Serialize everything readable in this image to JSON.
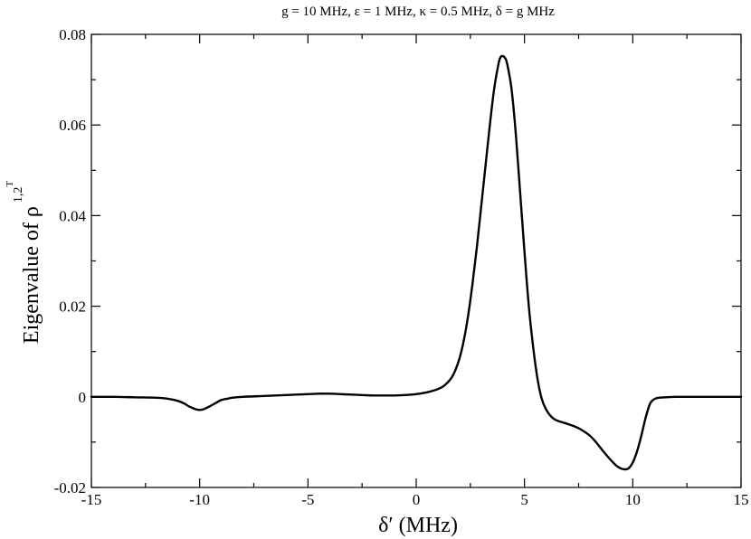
{
  "chart_data": {
    "type": "line",
    "title": "g = 10 MHz,  ε = 1 MHz, κ = 0.5 MHz, δ = g MHz",
    "xlabel": "δ′ (MHz)",
    "ylabel_main": "Eigenvalue of ρ",
    "ylabel_superscript": "1,2",
    "ylabel_superscript_t": "T",
    "xlim": [
      -15,
      15
    ],
    "ylim": [
      -0.02,
      0.08
    ],
    "grid": false,
    "x_ticks": [
      -15,
      -10,
      -5,
      0,
      5,
      10,
      15
    ],
    "x_tick_labels": [
      "-15",
      "-10",
      "-5",
      "0",
      "5",
      "10",
      "15"
    ],
    "y_ticks": [
      -0.02,
      0,
      0.02,
      0.04,
      0.06,
      0.08
    ],
    "y_tick_labels": [
      "-0.02",
      "0",
      "0.02",
      "0.04",
      "0.06",
      "0.08"
    ],
    "line_color": "#000000",
    "series": [
      {
        "x": [
          -15,
          -14,
          -13,
          -12,
          -11.5,
          -11,
          -10.7,
          -10.5,
          -10.2,
          -10,
          -9.8,
          -9.5,
          -9.2,
          -9,
          -8.7,
          -8.5,
          -8,
          -7,
          -6,
          -5,
          -4.5,
          -4.2,
          -4,
          -3.5,
          -3,
          -2.5,
          -2,
          -1.5,
          -1,
          -0.5,
          0,
          0.5,
          1,
          1.3,
          1.6,
          1.8,
          2,
          2.2,
          2.4,
          2.6,
          2.8,
          3,
          3.2,
          3.4,
          3.6,
          3.8,
          3.9,
          4,
          4.1,
          4.2,
          4.4,
          4.6,
          4.8,
          5,
          5.2,
          5.4,
          5.6,
          5.8,
          6,
          6.2,
          6.4,
          6.6,
          6.8,
          7,
          7.3,
          7.6,
          8,
          8.3,
          8.6,
          8.9,
          9.2,
          9.4,
          9.6,
          9.8,
          10,
          10.2,
          10.4,
          10.6,
          10.8,
          11,
          11.2,
          11.5,
          12,
          13,
          14,
          15
        ],
        "y": [
          0,
          0,
          -0.0001,
          -0.0002,
          -0.0004,
          -0.0009,
          -0.0015,
          -0.0021,
          -0.0027,
          -0.0029,
          -0.0027,
          -0.002,
          -0.0012,
          -0.0007,
          -0.0004,
          -0.0002,
          0,
          0.0002,
          0.0004,
          0.0006,
          0.0007,
          0.0007,
          0.0007,
          0.0006,
          0.0005,
          0.0004,
          0.0003,
          0.0003,
          0.0003,
          0.0004,
          0.0006,
          0.001,
          0.0017,
          0.0025,
          0.004,
          0.0058,
          0.0085,
          0.0125,
          0.018,
          0.025,
          0.033,
          0.042,
          0.051,
          0.06,
          0.068,
          0.0735,
          0.075,
          0.0752,
          0.0748,
          0.0735,
          0.068,
          0.058,
          0.045,
          0.032,
          0.02,
          0.011,
          0.004,
          -0.0005,
          -0.0028,
          -0.0042,
          -0.005,
          -0.0054,
          -0.0057,
          -0.006,
          -0.0065,
          -0.0072,
          -0.0085,
          -0.01,
          -0.0118,
          -0.0135,
          -0.015,
          -0.0157,
          -0.016,
          -0.0158,
          -0.0145,
          -0.012,
          -0.0085,
          -0.0045,
          -0.0015,
          -0.0005,
          -0.0002,
          -0.0001,
          0,
          0,
          0,
          0
        ]
      }
    ]
  }
}
